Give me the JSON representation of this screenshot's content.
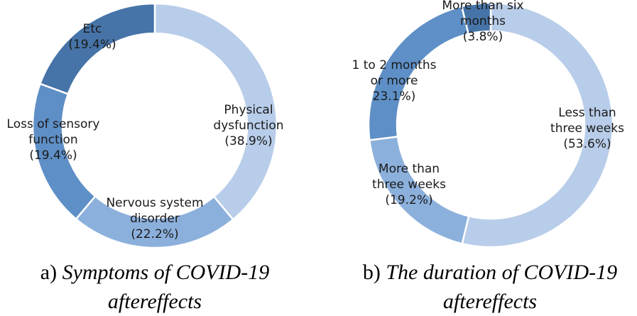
{
  "chart_data": [
    {
      "type": "pie",
      "variant": "donut",
      "caption_prefix": "a)",
      "caption_line1": "Symptoms of COVID-19",
      "caption_line2": "aftereffects",
      "slices": [
        {
          "label_lines": [
            "Physical",
            "dysfunction",
            "(38.9%)"
          ],
          "value": 38.9,
          "color": "#b8cde9"
        },
        {
          "label_lines": [
            "Nervous system",
            "disorder",
            "(22.2%)"
          ],
          "value": 22.2,
          "color": "#8cb0dc"
        },
        {
          "label_lines": [
            "Loss of sensory",
            "function",
            "(19.4%)"
          ],
          "value": 19.4,
          "color": "#5e8fc6"
        },
        {
          "label_lines": [
            "Etc",
            "(19.4%)"
          ],
          "value": 19.4,
          "color": "#4674a8"
        }
      ]
    },
    {
      "type": "pie",
      "variant": "donut",
      "caption_prefix": "b)",
      "caption_line1": "The duration of COVID-19",
      "caption_line2": "aftereffects",
      "slices": [
        {
          "label_lines": [
            "Less than",
            "three weeks",
            "(53.6%)"
          ],
          "value": 53.6,
          "color": "#b8cde9"
        },
        {
          "label_lines": [
            "More than",
            "three weeks",
            "(19.2%)"
          ],
          "value": 19.2,
          "color": "#8cb0dc"
        },
        {
          "label_lines": [
            "1 to 2 months",
            "or more",
            "23.1%)"
          ],
          "value": 23.1,
          "color": "#5e8fc6"
        },
        {
          "label_lines": [
            "More than six",
            "months",
            "(3.8%)"
          ],
          "value": 3.8,
          "color": "#4674a8"
        }
      ]
    }
  ]
}
